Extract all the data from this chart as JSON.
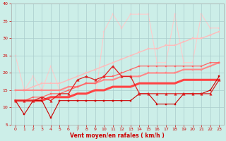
{
  "xlabel": "Vent moyen/en rafales ( km/h )",
  "bg_color": "#cceee8",
  "grid_color": "#aacccc",
  "xlim": [
    -0.5,
    23.5
  ],
  "ylim": [
    5,
    40
  ],
  "yticks": [
    5,
    10,
    15,
    20,
    25,
    30,
    35,
    40
  ],
  "xticks": [
    0,
    1,
    2,
    3,
    4,
    5,
    6,
    7,
    8,
    9,
    10,
    11,
    12,
    13,
    14,
    15,
    16,
    17,
    18,
    19,
    20,
    21,
    22,
    23
  ],
  "series": [
    {
      "x": [
        0,
        1,
        2,
        3,
        4,
        5,
        6,
        7,
        8,
        9,
        10,
        11,
        12,
        13,
        14,
        15,
        16,
        17,
        18,
        19,
        20,
        21,
        22,
        23
      ],
      "y": [
        12,
        8,
        12,
        12,
        7,
        12,
        12,
        12,
        12,
        12,
        12,
        12,
        12,
        12,
        14,
        14,
        11,
        11,
        11,
        14,
        14,
        14,
        15,
        19
      ],
      "color": "#cc0000",
      "lw": 0.8,
      "marker": "s",
      "ms": 1.8,
      "zorder": 5
    },
    {
      "x": [
        0,
        1,
        2,
        3,
        4,
        5,
        6,
        7,
        8,
        9,
        10,
        11,
        12,
        13,
        14,
        15,
        16,
        17,
        18,
        19,
        20,
        21,
        22,
        23
      ],
      "y": [
        15,
        15,
        15,
        15,
        15,
        15,
        16,
        16,
        17,
        17,
        18,
        18,
        19,
        19,
        19,
        20,
        20,
        20,
        20,
        21,
        21,
        21,
        22,
        23
      ],
      "color": "#ff8888",
      "lw": 1.5,
      "marker": "s",
      "ms": 1.8,
      "zorder": 3
    },
    {
      "x": [
        0,
        1,
        2,
        3,
        4,
        5,
        6,
        7,
        8,
        9,
        10,
        11,
        12,
        13,
        14,
        15,
        16,
        17,
        18,
        19,
        20,
        21,
        22,
        23
      ],
      "y": [
        15,
        15,
        16,
        17,
        17,
        17,
        18,
        19,
        20,
        21,
        22,
        23,
        24,
        25,
        26,
        27,
        27,
        28,
        28,
        29,
        30,
        30,
        31,
        32
      ],
      "color": "#ffbbbb",
      "lw": 1.0,
      "marker": "s",
      "ms": 1.8,
      "zorder": 2
    },
    {
      "x": [
        0,
        1,
        2,
        3,
        4,
        5,
        6,
        7,
        8,
        9,
        10,
        11,
        12,
        13,
        14,
        15,
        16,
        17,
        18,
        19,
        20,
        21,
        22,
        23
      ],
      "y": [
        25,
        15,
        19,
        15,
        22,
        15,
        15,
        12,
        12,
        12,
        32,
        37,
        33,
        37,
        37,
        37,
        23,
        23,
        37,
        23,
        23,
        37,
        33,
        33
      ],
      "color": "#ffcccc",
      "lw": 0.8,
      "marker": "s",
      "ms": 1.8,
      "zorder": 1
    },
    {
      "x": [
        0,
        1,
        2,
        3,
        4,
        5,
        6,
        7,
        8,
        9,
        10,
        11,
        12,
        13,
        14,
        15,
        16,
        17,
        18,
        19,
        20,
        21,
        22,
        23
      ],
      "y": [
        12,
        12,
        12,
        12,
        13,
        13,
        13,
        14,
        14,
        15,
        15,
        16,
        16,
        16,
        17,
        17,
        17,
        17,
        17,
        18,
        18,
        18,
        18,
        18
      ],
      "color": "#ff4444",
      "lw": 2.2,
      "marker": null,
      "ms": 0,
      "zorder": 4
    },
    {
      "x": [
        0,
        1,
        2,
        3,
        4,
        5,
        6,
        7,
        8,
        9,
        10,
        11,
        12,
        13,
        14,
        15,
        16,
        17,
        18,
        19,
        20,
        21,
        22,
        23
      ],
      "y": [
        12,
        12,
        13,
        13,
        14,
        14,
        15,
        16,
        17,
        17,
        19,
        19,
        20,
        21,
        22,
        22,
        22,
        22,
        22,
        22,
        22,
        22,
        23,
        23
      ],
      "color": "#ff6666",
      "lw": 0.9,
      "marker": "s",
      "ms": 1.8,
      "zorder": 3
    },
    {
      "x": [
        0,
        1,
        2,
        3,
        4,
        5,
        6,
        7,
        8,
        9,
        10,
        11,
        12,
        13,
        14,
        15,
        16,
        17,
        18,
        19,
        20,
        21,
        22,
        23
      ],
      "y": [
        12,
        12,
        12,
        13,
        12,
        14,
        14,
        18,
        19,
        18,
        19,
        22,
        19,
        19,
        14,
        14,
        14,
        14,
        14,
        14,
        14,
        14,
        14,
        18
      ],
      "color": "#dd2222",
      "lw": 0.9,
      "marker": "^",
      "ms": 2.5,
      "zorder": 6
    }
  ]
}
